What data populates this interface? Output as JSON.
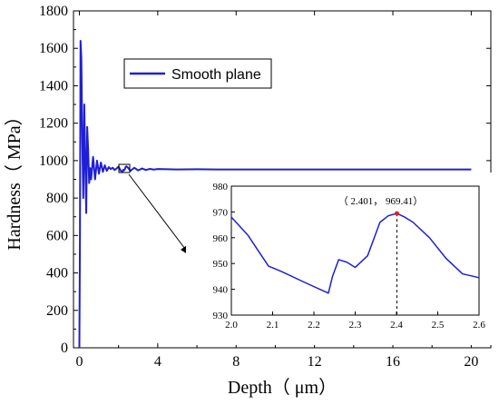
{
  "chart_data": [
    {
      "type": "line",
      "xlabel": "Depth（ μm）",
      "ylabel": "Hardness（ MPa）",
      "xlim": [
        -0.3,
        21
      ],
      "ylim": [
        0,
        1800
      ],
      "xticks": [
        0,
        4,
        8,
        12,
        16,
        20
      ],
      "yticks": [
        0,
        200,
        400,
        600,
        800,
        1000,
        1200,
        1400,
        1600,
        1800
      ],
      "legend": {
        "position": "top-left",
        "entries": [
          "Smooth plane"
        ]
      },
      "grid": false,
      "series": [
        {
          "name": "Smooth plane",
          "color": "#1f1fd6",
          "x": [
            0.0,
            0.03,
            0.06,
            0.1,
            0.15,
            0.2,
            0.25,
            0.3,
            0.35,
            0.4,
            0.45,
            0.5,
            0.55,
            0.6,
            0.7,
            0.8,
            0.9,
            1.0,
            1.1,
            1.2,
            1.3,
            1.4,
            1.5,
            1.6,
            1.7,
            1.8,
            1.9,
            2.0,
            2.1,
            2.2,
            2.24,
            2.28,
            2.32,
            2.36,
            2.401,
            2.45,
            2.5,
            2.55,
            2.6,
            2.8,
            3.0,
            3.2,
            3.4,
            3.6,
            3.8,
            4.0,
            5.0,
            6.0,
            7.0,
            8.0,
            10.0,
            12.0,
            14.0,
            16.0,
            18.0,
            20.0
          ],
          "y": [
            0,
            600,
            1640,
            1550,
            1100,
            800,
            1300,
            1000,
            720,
            1180,
            1050,
            880,
            960,
            900,
            1020,
            900,
            1000,
            930,
            990,
            940,
            975,
            945,
            965,
            955,
            962,
            950,
            958,
            968,
            948,
            939,
            951,
            948,
            953,
            966,
            969.41,
            965,
            960,
            953,
            945,
            962,
            948,
            958,
            950,
            956,
            952,
            955,
            953,
            954,
            953,
            953,
            953,
            953,
            953,
            953,
            953,
            953
          ]
        }
      ]
    },
    {
      "type": "line",
      "xlabel": "",
      "ylabel": "",
      "xlim": [
        2.0,
        2.6
      ],
      "ylim": [
        930,
        980
      ],
      "xticks": [
        2.0,
        2.1,
        2.2,
        2.3,
        2.4,
        2.5,
        2.6
      ],
      "yticks": [
        930,
        940,
        950,
        960,
        970,
        980
      ],
      "series": [
        {
          "color": "#1f1fd6",
          "x": [
            2.0,
            2.04,
            2.09,
            2.12,
            2.18,
            2.235,
            2.245,
            2.26,
            2.28,
            2.3,
            2.33,
            2.36,
            2.38,
            2.401,
            2.42,
            2.44,
            2.48,
            2.52,
            2.56,
            2.6
          ],
          "y": [
            968,
            961,
            949,
            947,
            942.5,
            938.5,
            945,
            951.5,
            950.5,
            948.5,
            953,
            966,
            968.5,
            969.41,
            968,
            966,
            960,
            952,
            946,
            944.5
          ]
        }
      ],
      "annotation": {
        "text": "（ 2.401， 969.41）",
        "x": 2.401,
        "y": 969.41
      }
    }
  ]
}
